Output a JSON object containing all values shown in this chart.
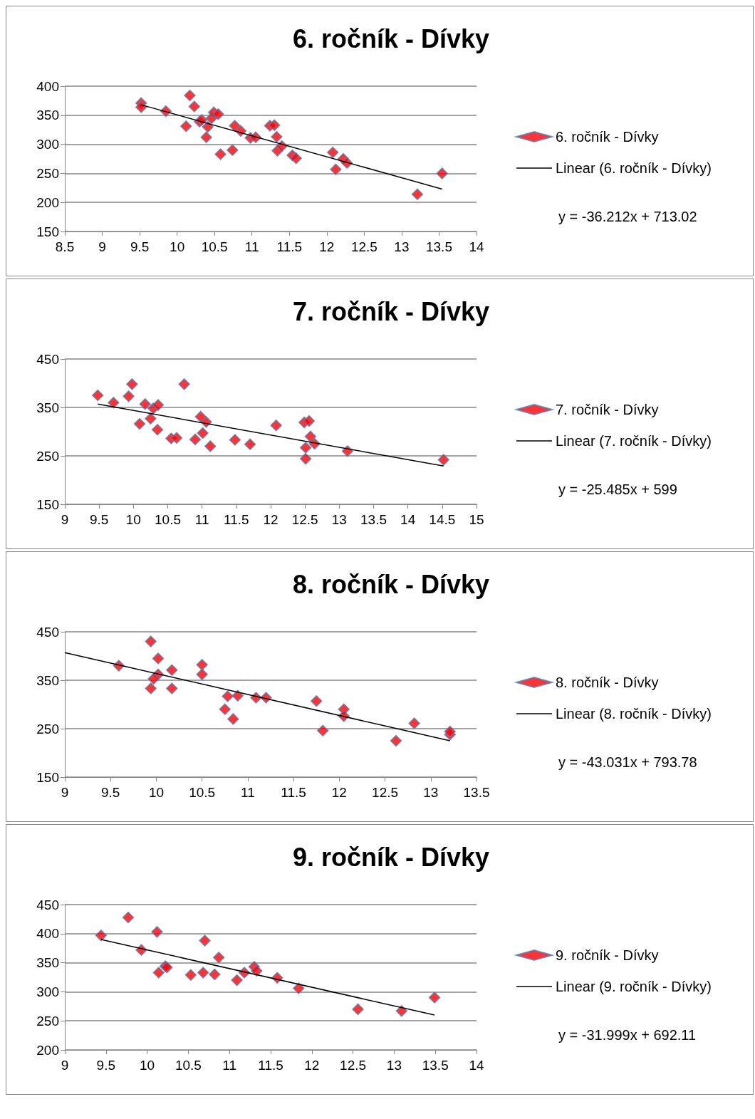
{
  "chart_data": [
    {
      "type": "scatter",
      "title": "6. ročník - Dívky",
      "xlim": [
        8.5,
        14
      ],
      "xticks": [
        8.5,
        9,
        9.5,
        10,
        10.5,
        11,
        11.5,
        12,
        12.5,
        13,
        13.5,
        14
      ],
      "ylim": [
        150,
        400
      ],
      "yticks": [
        150,
        200,
        250,
        300,
        350,
        400
      ],
      "grid": "y",
      "legend": "right",
      "marker": "diamond",
      "annotations": [
        "y = -36.212x + 713.02"
      ],
      "series": [
        {
          "name": "6. ročník - Dívky",
          "color": "#ff0000",
          "x": [
            9.52,
            9.52,
            9.85,
            10.17,
            10.23,
            10.12,
            10.3,
            10.33,
            10.41,
            10.39,
            10.46,
            10.49,
            10.55,
            10.58,
            10.74,
            10.77,
            10.85,
            10.98,
            11.05,
            11.24,
            11.3,
            11.33,
            11.34,
            11.4,
            11.54,
            11.59,
            12.08,
            12.12,
            12.22,
            12.27,
            13.21,
            13.54
          ],
          "values": [
            371,
            364,
            357,
            384,
            365,
            331,
            339,
            342,
            330,
            312,
            345,
            355,
            352,
            283,
            290,
            332,
            323,
            311,
            312,
            332,
            333,
            313,
            289,
            297,
            281,
            276,
            286,
            257,
            275,
            268,
            214,
            250
          ]
        },
        {
          "name": "Linear (6. ročník - Dívky)",
          "type": "line",
          "marker": "none",
          "color": "#000000",
          "x": [
            9.52,
            13.54
          ],
          "values": [
            368,
            223
          ]
        }
      ]
    },
    {
      "type": "scatter",
      "title": "7. ročník - Dívky",
      "xlim": [
        9,
        15
      ],
      "xticks": [
        9,
        9.5,
        10,
        10.5,
        11,
        11.5,
        12,
        12.5,
        13,
        13.5,
        14,
        14.5,
        15
      ],
      "ylim": [
        150,
        450
      ],
      "yticks": [
        150,
        250,
        350,
        450
      ],
      "grid": "y",
      "legend": "right",
      "marker": "diamond",
      "annotations": [
        "y = -25.485x + 599"
      ],
      "series": [
        {
          "name": "7. ročník - Dívky",
          "color": "#ff0000",
          "x": [
            9.48,
            9.71,
            9.98,
            9.93,
            10.09,
            10.17,
            10.25,
            10.29,
            10.36,
            10.35,
            10.55,
            10.63,
            10.74,
            10.9,
            10.98,
            11.01,
            11.06,
            11.12,
            11.48,
            11.7,
            12.08,
            12.51,
            12.51,
            12.49,
            12.56,
            12.58,
            12.64,
            13.12,
            14.52
          ],
          "values": [
            375,
            360,
            398,
            373,
            316,
            357,
            327,
            348,
            355,
            304,
            286,
            287,
            398,
            284,
            331,
            297,
            320,
            270,
            283,
            274,
            313,
            267,
            244,
            319,
            322,
            290,
            275,
            260,
            242
          ]
        },
        {
          "name": "Linear (7. ročník - Dívky)",
          "type": "line",
          "marker": "none",
          "color": "#000000",
          "x": [
            9.48,
            14.52
          ],
          "values": [
            357,
            229
          ]
        }
      ]
    },
    {
      "type": "scatter",
      "title": "8. ročník - Dívky",
      "xlim": [
        9,
        13.5
      ],
      "xticks": [
        9,
        9.5,
        10,
        10.5,
        11,
        11.5,
        12,
        12.5,
        13,
        13.5
      ],
      "ylim": [
        150,
        450
      ],
      "yticks": [
        150,
        250,
        350,
        450
      ],
      "grid": "y",
      "legend": "right",
      "marker": "diamond",
      "annotations": [
        "y = -43.031x + 793.78"
      ],
      "series": [
        {
          "name": "8. ročník - Dívky",
          "color": "#ff0000",
          "x": [
            9.59,
            9.94,
            10.02,
            10.02,
            9.97,
            9.94,
            10.17,
            10.17,
            10.5,
            10.5,
            10.78,
            10.75,
            10.84,
            10.89,
            11.09,
            11.2,
            11.75,
            11.82,
            12.05,
            12.05,
            12.62,
            12.82,
            13.21,
            13.21
          ],
          "values": [
            380,
            430,
            395,
            362,
            353,
            333,
            371,
            333,
            382,
            362,
            317,
            290,
            270,
            318,
            314,
            314,
            307,
            246,
            290,
            276,
            225,
            261,
            238,
            244
          ]
        },
        {
          "name": "Linear (8. ročník - Dívky)",
          "type": "line",
          "marker": "none",
          "color": "#000000",
          "x": [
            9,
            13.21
          ],
          "values": [
            407,
            225
          ]
        }
      ]
    },
    {
      "type": "scatter",
      "title": "9. ročník - Dívky",
      "xlim": [
        9,
        14
      ],
      "xticks": [
        9,
        9.5,
        10,
        10.5,
        11,
        11.5,
        12,
        12.5,
        13,
        13.5,
        14
      ],
      "ylim": [
        200,
        450
      ],
      "yticks": [
        200,
        250,
        300,
        350,
        400,
        450
      ],
      "grid": "y",
      "legend": "right",
      "marker": "diamond",
      "annotations": [
        "y = -31.999x + 692.11"
      ],
      "series": [
        {
          "name": "9. ročník - Dívky",
          "color": "#ff0000",
          "x": [
            9.44,
            9.77,
            9.93,
            10.12,
            10.14,
            10.22,
            10.24,
            10.53,
            10.7,
            10.68,
            10.82,
            10.87,
            11.09,
            11.18,
            11.3,
            11.33,
            11.58,
            11.84,
            12.56,
            13.09,
            13.49
          ],
          "values": [
            397,
            428,
            372,
            403,
            333,
            344,
            342,
            329,
            388,
            333,
            330,
            359,
            320,
            333,
            343,
            336,
            324,
            306,
            270,
            267,
            290
          ]
        },
        {
          "name": "Linear (9. ročník - Dívky)",
          "type": "line",
          "marker": "none",
          "color": "#000000",
          "x": [
            9.44,
            13.49
          ],
          "values": [
            390,
            260
          ]
        }
      ]
    }
  ]
}
